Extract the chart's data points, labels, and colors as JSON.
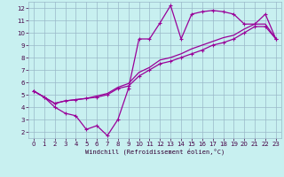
{
  "xlabel": "Windchill (Refroidissement éolien,°C)",
  "bg_color": "#c8f0f0",
  "grid_color": "#9ab8c8",
  "line_color": "#990099",
  "xlim": [
    -0.5,
    23.5
  ],
  "ylim": [
    1.5,
    12.5
  ],
  "xticks": [
    0,
    1,
    2,
    3,
    4,
    5,
    6,
    7,
    8,
    9,
    10,
    11,
    12,
    13,
    14,
    15,
    16,
    17,
    18,
    19,
    20,
    21,
    22,
    23
  ],
  "yticks": [
    2,
    3,
    4,
    5,
    6,
    7,
    8,
    9,
    10,
    11,
    12
  ],
  "line_jagged_x": [
    0,
    1,
    2,
    3,
    4,
    5,
    6,
    7,
    8,
    9,
    10,
    11,
    12,
    13,
    14,
    15,
    16,
    17,
    18,
    19,
    20,
    21,
    22,
    23
  ],
  "line_jagged_y": [
    5.3,
    4.8,
    4.0,
    3.5,
    3.3,
    2.2,
    2.5,
    1.7,
    3.0,
    5.5,
    9.5,
    9.5,
    10.8,
    12.2,
    9.5,
    11.5,
    11.7,
    11.8,
    11.7,
    11.5,
    10.7,
    10.7,
    11.5,
    9.5
  ],
  "line_mid_x": [
    0,
    1,
    2,
    3,
    4,
    5,
    6,
    7,
    8,
    9,
    10,
    11,
    12,
    13,
    14,
    15,
    16,
    17,
    18,
    19,
    20,
    21,
    22,
    23
  ],
  "line_mid_y": [
    5.3,
    4.8,
    4.3,
    4.5,
    4.6,
    4.7,
    4.8,
    5.0,
    5.5,
    5.7,
    6.5,
    7.0,
    7.5,
    7.7,
    8.0,
    8.3,
    8.6,
    9.0,
    9.2,
    9.5,
    10.0,
    10.5,
    10.5,
    9.5
  ],
  "line_diag_x": [
    0,
    1,
    2,
    3,
    4,
    5,
    6,
    7,
    8,
    9,
    10,
    11,
    12,
    13,
    14,
    15,
    16,
    17,
    18,
    19,
    20,
    21,
    22,
    23
  ],
  "line_diag_y": [
    5.3,
    4.8,
    4.3,
    4.5,
    4.6,
    4.7,
    4.9,
    5.1,
    5.6,
    5.9,
    6.8,
    7.2,
    7.8,
    8.0,
    8.3,
    8.7,
    9.0,
    9.3,
    9.6,
    9.8,
    10.3,
    10.7,
    10.7,
    9.5
  ]
}
